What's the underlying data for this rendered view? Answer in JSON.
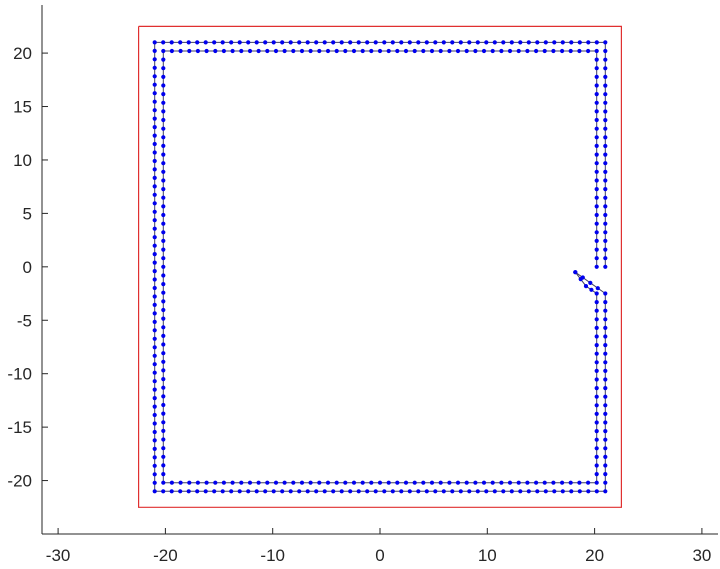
{
  "chart_data": {
    "type": "scatter",
    "title": "",
    "xlabel": "",
    "ylabel": "",
    "xlim": [
      -31.5,
      31.5
    ],
    "ylim": [
      -25,
      24.5
    ],
    "xticks": [
      -30,
      -20,
      -10,
      0,
      10,
      20,
      30
    ],
    "yticks": [
      -20,
      -15,
      -10,
      -5,
      0,
      5,
      10,
      15,
      20
    ],
    "xtick_labels": [
      "-30",
      "-20",
      "-10",
      "0",
      "10",
      "20",
      "30"
    ],
    "ytick_labels": [
      "-20",
      "-15",
      "-10",
      "-5",
      "0",
      "5",
      "10",
      "15",
      "20"
    ],
    "grid": false,
    "legend": "none",
    "boundary": {
      "color": "#e03030",
      "x": [
        -22.5,
        22.5,
        22.5,
        -22.5,
        -22.5
      ],
      "y": [
        22.5,
        22.5,
        -22.5,
        -22.5,
        22.5
      ]
    },
    "series": [
      {
        "style": "line-with-markers",
        "color": "#0000ee",
        "line_color": "#404060",
        "closed": false,
        "points": [
          [
            21,
            0
          ],
          [
            21,
            21
          ],
          [
            -21,
            21
          ],
          [
            -21,
            -21
          ],
          [
            21,
            -21
          ],
          [
            21,
            -2.5
          ],
          [
            18.2,
            -0.5
          ]
        ]
      },
      {
        "style": "line-with-markers",
        "color": "#0000ee",
        "line_color": "#404060",
        "closed": false,
        "points": [
          [
            20.2,
            0
          ],
          [
            20.2,
            20.2
          ],
          [
            -20.2,
            20.2
          ],
          [
            -20.2,
            -20.2
          ],
          [
            20.2,
            -20.2
          ],
          [
            20.2,
            -2.5
          ],
          [
            19.2,
            -1.8
          ],
          [
            18.2,
            -0.5
          ]
        ]
      }
    ],
    "marker_spacing": 0.8
  }
}
